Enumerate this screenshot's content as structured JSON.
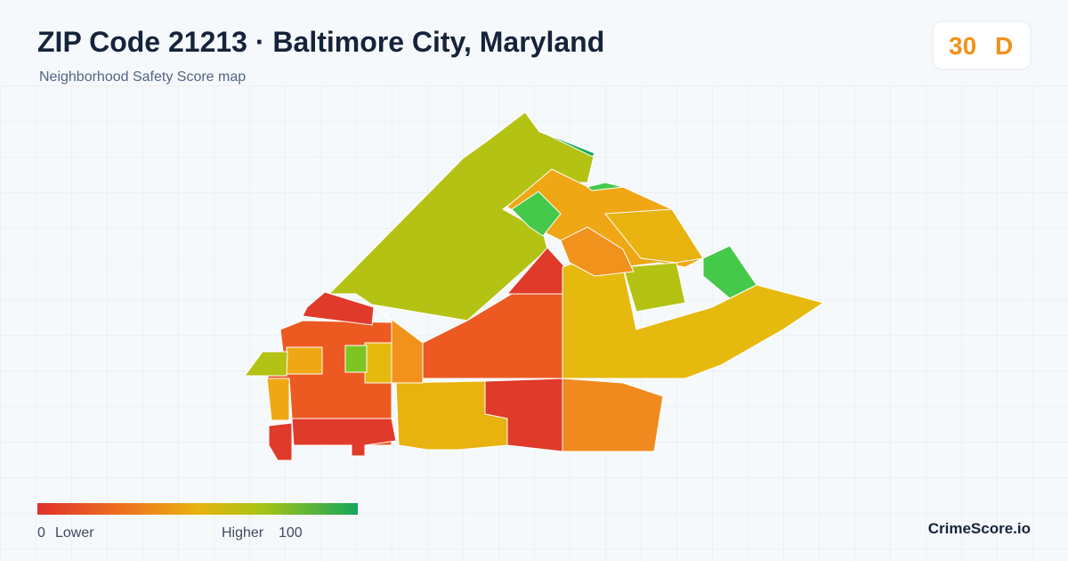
{
  "header": {
    "title": "ZIP Code 21213 · Baltimore City, Maryland",
    "subtitle": "Neighborhood Safety Score map"
  },
  "score": {
    "value": "30",
    "grade": "D"
  },
  "legend": {
    "min": "0",
    "low_label": "Lower",
    "high_label": "Higher",
    "max": "100"
  },
  "brand": "CrimeScore.io"
}
